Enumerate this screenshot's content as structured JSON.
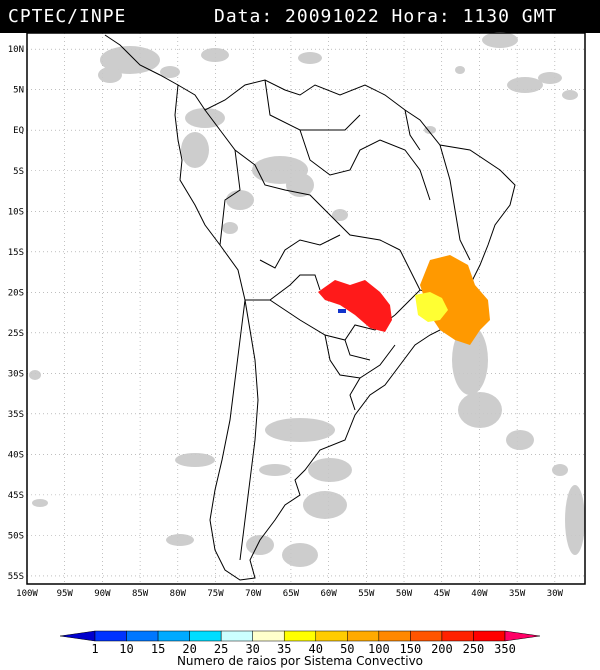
{
  "header": {
    "source": "CPTEC/INPE",
    "datetime": "Data: 20091022 Hora: 1130 GMT"
  },
  "map": {
    "lat_labels": [
      "10N",
      "5N",
      "EQ",
      "5S",
      "10S",
      "15S",
      "20S",
      "25S",
      "30S",
      "35S",
      "40S",
      "45S",
      "50S",
      "55S"
    ],
    "lon_labels": [
      "100W",
      "95W",
      "90W",
      "85W",
      "80W",
      "75W",
      "70W",
      "65W",
      "60W",
      "55W",
      "50W",
      "45W",
      "40W",
      "35W",
      "30W"
    ],
    "lon_range": [
      -100,
      -26
    ],
    "lat_range": [
      -56,
      12
    ],
    "gridlines": true,
    "colors": {
      "land_border": "#000000",
      "cloud": "#c8c8c8",
      "storm_red": "#ff1a1a",
      "storm_orange": "#ff9900",
      "storm_yellow": "#ffff33",
      "storm_blue": "#1133cc"
    }
  },
  "colorbar": {
    "labels": [
      "1",
      "10",
      "15",
      "20",
      "25",
      "30",
      "35",
      "40",
      "50",
      "100",
      "150",
      "200",
      "250",
      "350"
    ],
    "colors": [
      "#0000cc",
      "#0033ff",
      "#0077ff",
      "#00aaff",
      "#00ddff",
      "#ccffff",
      "#ffffcc",
      "#ffff00",
      "#ffcc00",
      "#ffaa00",
      "#ff8800",
      "#ff5500",
      "#ff2200",
      "#ff0000",
      "#ff0066"
    ],
    "caption": "Numero de raios por Sistema Convectivo"
  }
}
